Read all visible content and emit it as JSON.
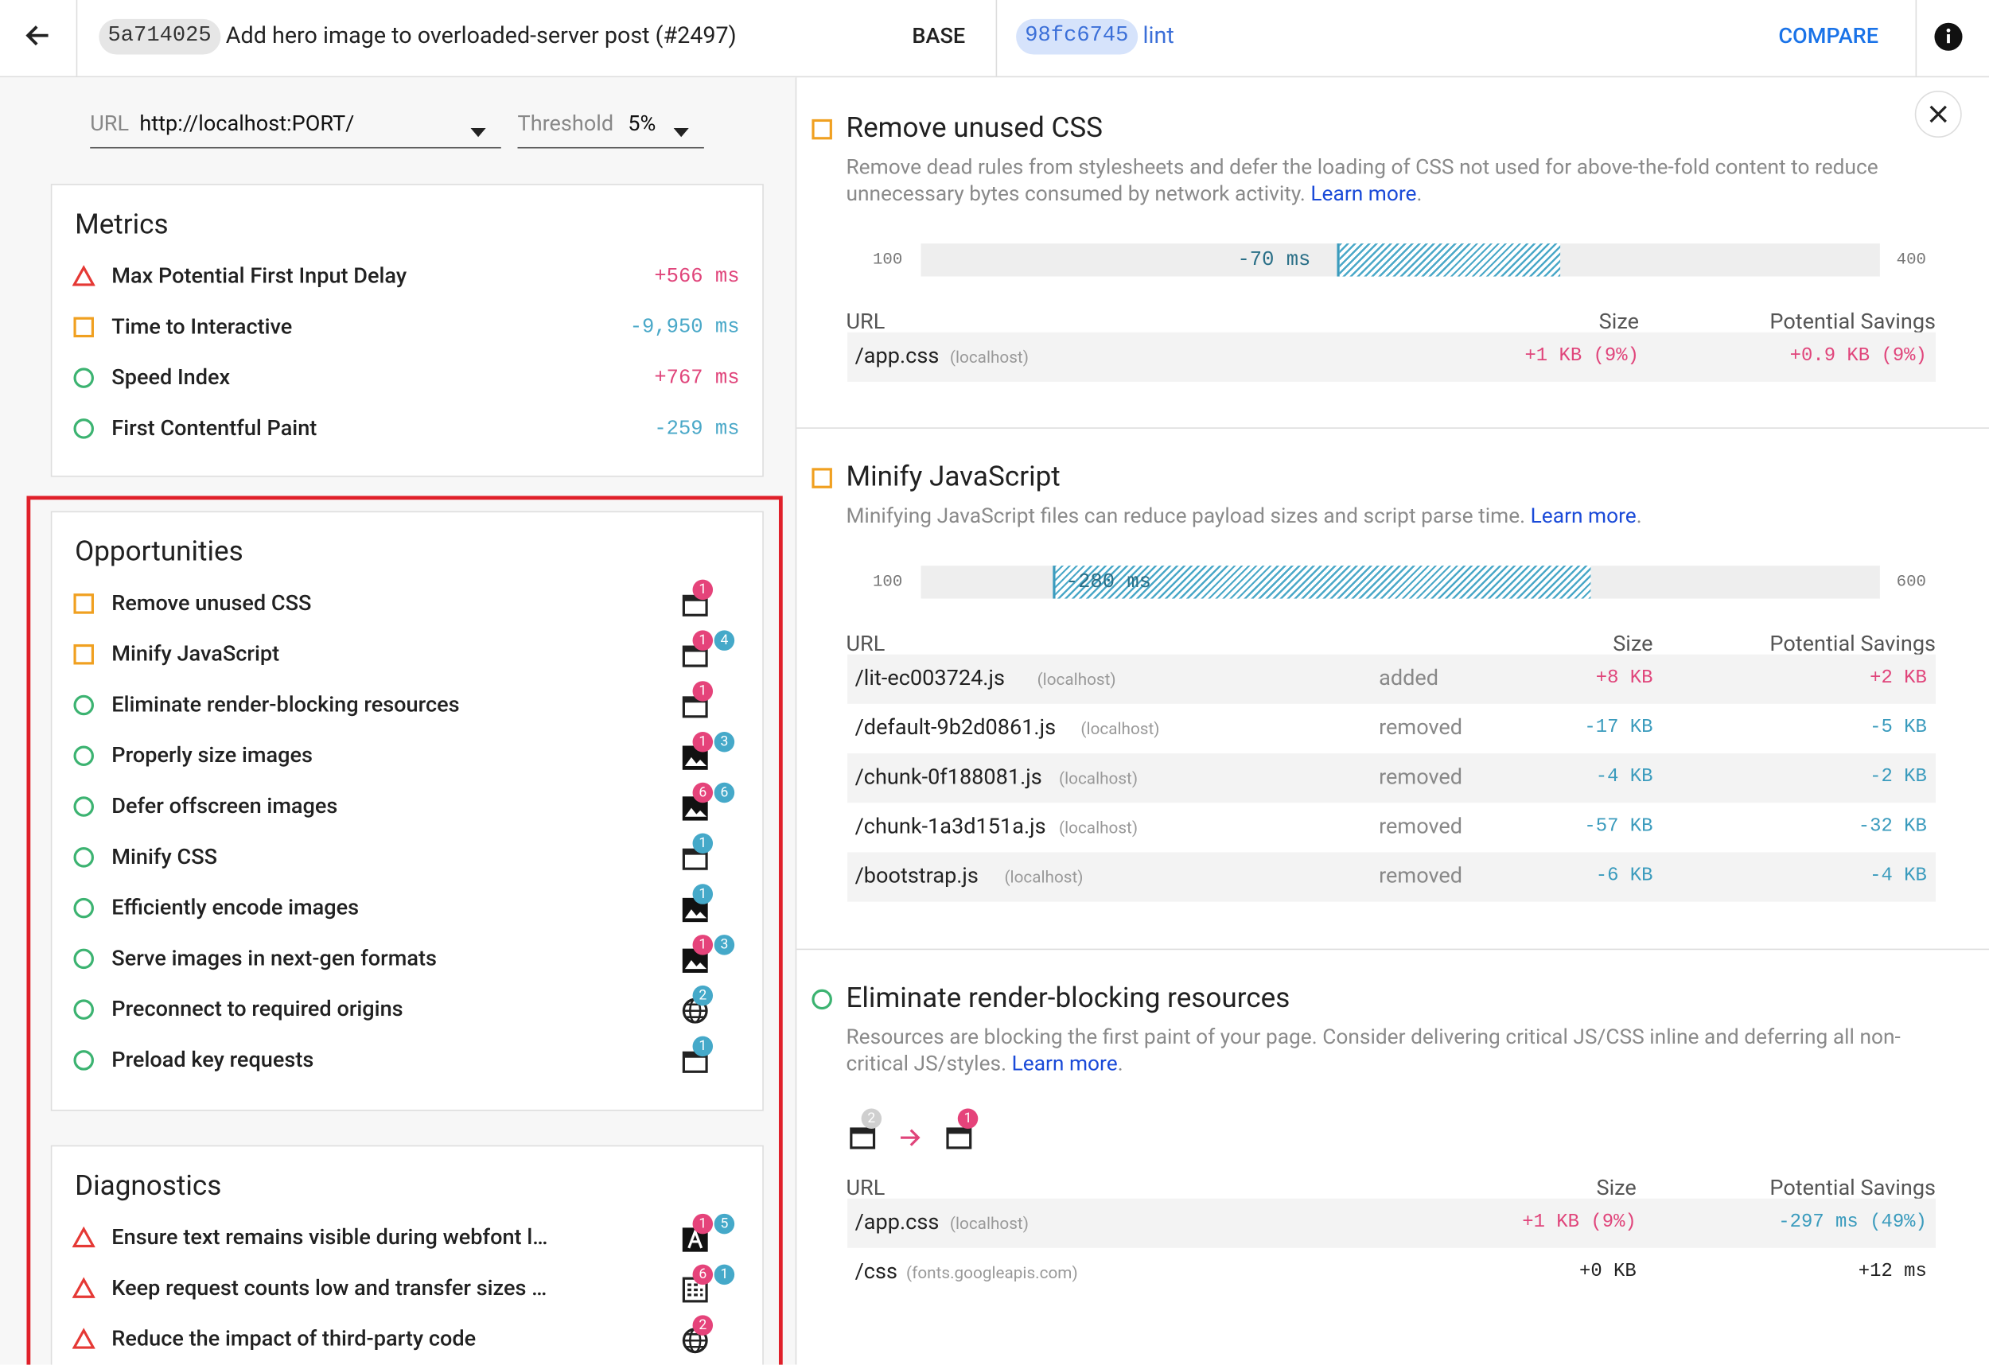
{
  "header": {
    "base_hash": "5a714025",
    "base_title": "Add hero image to overloaded-server post (#2497)",
    "base_label": "BASE",
    "compare_hash": "98fc6745",
    "compare_title": "lint",
    "compare_label": "COMPARE"
  },
  "filters": {
    "url_label": "URL",
    "url_value": "http://localhost:PORT/",
    "threshold_label": "Threshold",
    "threshold_value": "5%"
  },
  "metrics": {
    "title": "Metrics",
    "items": [
      {
        "status": "triangle",
        "label": "Max Potential First Input Delay",
        "delta": "+566 ms",
        "color": "#e0457b"
      },
      {
        "status": "square",
        "label": "Time to Interactive",
        "delta": "-9,950 ms",
        "color": "#4aa8c8"
      },
      {
        "status": "circle",
        "label": "Speed Index",
        "delta": "+767 ms",
        "color": "#e0457b"
      },
      {
        "status": "circle",
        "label": "First Contentful Paint",
        "delta": "-259 ms",
        "color": "#4aa8c8"
      }
    ]
  },
  "opportunities": {
    "title": "Opportunities",
    "items": [
      {
        "status": "square",
        "label": "Remove unused CSS",
        "icon": "page",
        "badges": [
          {
            "count": 1,
            "color": "#e5437a"
          }
        ]
      },
      {
        "status": "square",
        "label": "Minify JavaScript",
        "icon": "page",
        "badges": [
          {
            "count": 1,
            "color": "#e5437a"
          },
          {
            "count": 4,
            "color": "#45a9c9"
          }
        ]
      },
      {
        "status": "circle",
        "label": "Eliminate render-blocking resources",
        "icon": "page",
        "badges": [
          {
            "count": 1,
            "color": "#e5437a"
          }
        ]
      },
      {
        "status": "circle",
        "label": "Properly size images",
        "icon": "image",
        "badges": [
          {
            "count": 1,
            "color": "#e5437a"
          },
          {
            "count": 3,
            "color": "#45a9c9"
          }
        ]
      },
      {
        "status": "circle",
        "label": "Defer offscreen images",
        "icon": "image",
        "badges": [
          {
            "count": 6,
            "color": "#e5437a"
          },
          {
            "count": 6,
            "color": "#45a9c9"
          }
        ]
      },
      {
        "status": "circle",
        "label": "Minify CSS",
        "icon": "page",
        "badges": [
          {
            "count": 1,
            "color": "#45a9c9"
          }
        ]
      },
      {
        "status": "circle",
        "label": "Efficiently encode images",
        "icon": "image",
        "badges": [
          {
            "count": 1,
            "color": "#45a9c9"
          }
        ]
      },
      {
        "status": "circle",
        "label": "Serve images in next-gen formats",
        "icon": "image",
        "badges": [
          {
            "count": 1,
            "color": "#e5437a"
          },
          {
            "count": 3,
            "color": "#45a9c9"
          }
        ]
      },
      {
        "status": "circle",
        "label": "Preconnect to required origins",
        "icon": "globe",
        "badges": [
          {
            "count": 2,
            "color": "#45a9c9"
          }
        ]
      },
      {
        "status": "circle",
        "label": "Preload key requests",
        "icon": "page",
        "badges": [
          {
            "count": 1,
            "color": "#45a9c9"
          }
        ]
      }
    ]
  },
  "diagnostics": {
    "title": "Diagnostics",
    "items": [
      {
        "status": "triangle",
        "label": "Ensure text remains visible during webfont l…",
        "icon": "font",
        "badges": [
          {
            "count": 1,
            "color": "#e5437a"
          },
          {
            "count": 5,
            "color": "#45a9c9"
          }
        ]
      },
      {
        "status": "triangle",
        "label": "Keep request counts low and transfer sizes …",
        "icon": "doc",
        "badges": [
          {
            "count": 6,
            "color": "#e5437a"
          },
          {
            "count": 1,
            "color": "#45a9c9"
          }
        ]
      },
      {
        "status": "triangle",
        "label": "Reduce the impact of third-party code",
        "icon": "globe",
        "badges": [
          {
            "count": 2,
            "color": "#e5437a"
          }
        ]
      }
    ]
  },
  "audits": [
    {
      "status": "square",
      "title": "Remove unused CSS",
      "description": "Remove dead rules from stylesheets and defer the loading of CSS not used for above-the-fold content to reduce unnecessary bytes consumed by network activity.",
      "link": "Learn more",
      "link_end": ".",
      "bar": {
        "range": [
          100,
          400
        ],
        "from": 300,
        "to": 230,
        "delta_label": "-70 ms"
      },
      "columns": [
        "URL",
        "Size",
        "Potential Savings"
      ],
      "rows": [
        {
          "url": "/app.css",
          "host": "(localhost)",
          "size": "+1 KB (9%)",
          "size_color": "#e0457b",
          "savings": "+0.9 KB (9%)",
          "savings_color": "#e0457b"
        }
      ]
    },
    {
      "status": "square",
      "title": "Minify JavaScript",
      "description": "Minifying JavaScript files can reduce payload sizes and script parse time.",
      "link": "Learn more",
      "link_end": ".",
      "bar": {
        "range": [
          100,
          600
        ],
        "from": 449,
        "to": 169,
        "delta_label": "-280 ms"
      },
      "columns": [
        "URL",
        "Size",
        "Potential Savings"
      ],
      "rows": [
        {
          "url": "/lit-ec003724.js",
          "host": "(localhost)",
          "state": "added",
          "size": "+8 KB",
          "size_color": "#e0457b",
          "savings": "+2 KB",
          "savings_color": "#e0457b"
        },
        {
          "url": "/default-9b2d0861.js",
          "host": "(localhost)",
          "state": "removed",
          "size": "-17 KB",
          "size_color": "#3a9bbd",
          "savings": "-5 KB",
          "savings_color": "#3a9bbd"
        },
        {
          "url": "/chunk-0f188081.js",
          "host": "(localhost)",
          "state": "removed",
          "size": "-4 KB",
          "size_color": "#3a9bbd",
          "savings": "-2 KB",
          "savings_color": "#3a9bbd"
        },
        {
          "url": "/chunk-1a3d151a.js",
          "host": "(localhost)",
          "state": "removed",
          "size": "-57 KB",
          "size_color": "#3a9bbd",
          "savings": "-32 KB",
          "savings_color": "#3a9bbd"
        },
        {
          "url": "/bootstrap.js",
          "host": "(localhost)",
          "state": "removed",
          "size": "-6 KB",
          "size_color": "#3a9bbd",
          "savings": "-4 KB",
          "savings_color": "#3a9bbd"
        }
      ]
    },
    {
      "status": "circle",
      "title": "Eliminate render-blocking resources",
      "description": "Resources are blocking the first paint of your page. Consider delivering critical JS/CSS inline and deferring all non-critical JS/styles.",
      "link": "Learn more",
      "link_end": ".",
      "transition": {
        "from": [
          {
            "count": 2,
            "color": "#cfcfcf"
          }
        ],
        "to": [
          {
            "count": 1,
            "color": "#e5437a"
          }
        ]
      },
      "columns": [
        "URL",
        "Size",
        "Potential Savings"
      ],
      "rows": [
        {
          "url": "/app.css",
          "host": "(localhost)",
          "size": "+1 KB (9%)",
          "size_color": "#e0457b",
          "savings": "-297 ms (49%)",
          "savings_color": "#3a9bbd"
        },
        {
          "url": "/css",
          "host": "(fonts.googleapis.com)",
          "size": "+0 KB",
          "size_color": "#212121",
          "savings": "+12 ms",
          "savings_color": "#212121"
        }
      ]
    }
  ]
}
